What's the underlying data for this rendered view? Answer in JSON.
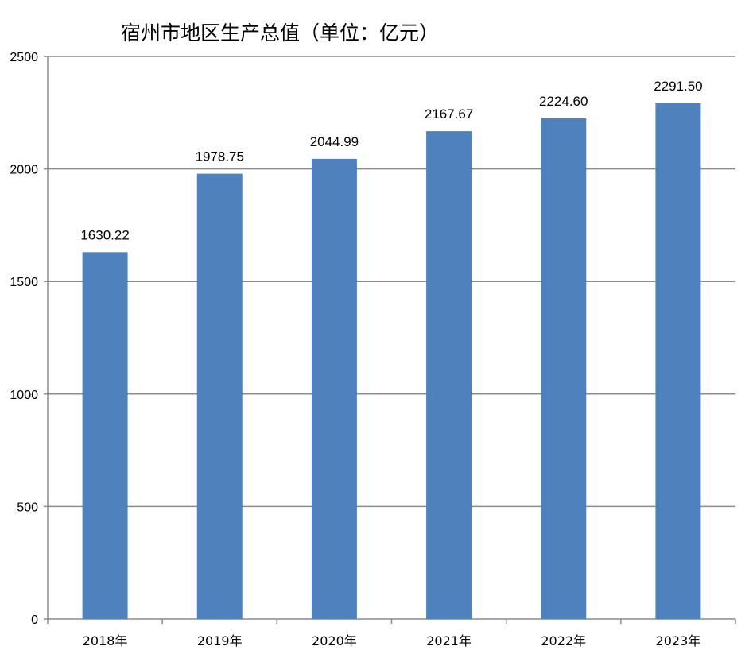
{
  "chart_data": {
    "type": "bar",
    "title": "宿州市地区生产总值（单位：亿元）",
    "categories": [
      "2018年",
      "2019年",
      "2020年",
      "2021年",
      "2022年",
      "2023年"
    ],
    "values": [
      1630.22,
      1978.75,
      2044.99,
      2167.67,
      2224.6,
      2291.5
    ],
    "value_labels": [
      "1630.22",
      "1978.75",
      "2044.99",
      "2167.67",
      "2224.60",
      "2291.50"
    ],
    "xlabel": "",
    "ylabel": "",
    "ylim": [
      0,
      2500
    ],
    "yticks": [
      0,
      500,
      1000,
      1500,
      2000,
      2500
    ],
    "grid": true,
    "legend": "none",
    "bar_color": "#4f81bd",
    "grid_color": "#8c8c8c"
  }
}
